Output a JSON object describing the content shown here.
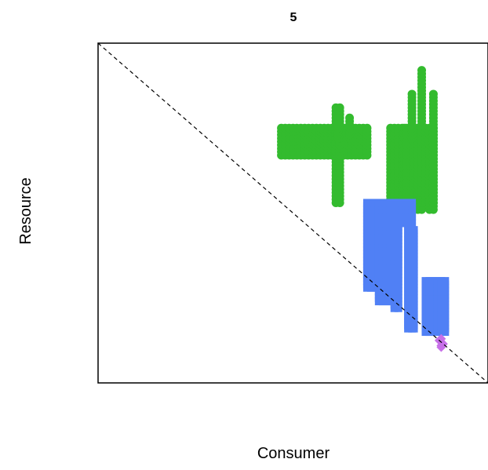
{
  "chart_data": {
    "type": "scatter",
    "title": "5",
    "xlabel": "Consumer",
    "ylabel": "Resource",
    "xlim": [
      0,
      100
    ],
    "ylim": [
      0,
      100
    ],
    "grid": false,
    "ticks": false,
    "reference_line": {
      "style": "dashed",
      "color": "#000000",
      "from": [
        0,
        100
      ],
      "to": [
        100,
        0
      ]
    },
    "series": [
      {
        "color": "#33BB2E",
        "marker": "circle",
        "groups": [
          {
            "x_range": [
              47,
              69
            ],
            "y_range": [
              67,
              75
            ]
          },
          {
            "x": 61,
            "y_range": [
              53,
              81
            ]
          },
          {
            "x": 62,
            "y_range": [
              53,
              81
            ]
          },
          {
            "x_range": [
              75,
              78
            ],
            "y_range": [
              51,
              75
            ]
          },
          {
            "x": 78,
            "y_range": [
              66,
              71
            ]
          },
          {
            "x": 78,
            "y_range": [
              59,
              62
            ]
          },
          {
            "x": 78.5,
            "y_range": [
              53,
              75
            ]
          },
          {
            "x": 79,
            "y_range": [
              53,
              75
            ]
          },
          {
            "x_range": [
              80,
              83
            ],
            "y_range": [
              51,
              75
            ]
          },
          {
            "x": 83,
            "y_range": [
              53,
              92
            ]
          },
          {
            "x": 84,
            "y_range": [
              53,
              75
            ]
          },
          {
            "x_range": [
              85,
              86
            ],
            "y_range": [
              51,
              75
            ]
          },
          {
            "x": 86,
            "y_range": [
              53,
              85
            ]
          },
          {
            "x": 80.5,
            "y_range": [
              72,
              85
            ]
          },
          {
            "x": 61.5,
            "y_range": [
              72,
              78
            ]
          },
          {
            "x": 64.5,
            "y_range": [
              72,
              78
            ]
          }
        ]
      },
      {
        "color": "#5080F5",
        "marker": "square",
        "groups": [
          {
            "x_range": [
              69,
              71
            ],
            "y_range": [
              28,
              53
            ]
          },
          {
            "x_range": [
              72,
              75
            ],
            "y_range": [
              24,
              53
            ]
          },
          {
            "x_range": [
              76,
              77
            ],
            "y_range": [
              22,
              53
            ]
          },
          {
            "x_range": [
              78,
              80
            ],
            "y_range": [
              47,
              53
            ]
          },
          {
            "x": 79.5,
            "y_range": [
              16,
              53
            ]
          },
          {
            "x": 80.5,
            "y_range": [
              16,
              53
            ]
          },
          {
            "x": 81,
            "y_range": [
              16,
              45
            ]
          },
          {
            "x_range": [
              84,
              89
            ],
            "y_range": [
              15,
              30
            ]
          }
        ]
      },
      {
        "color": "#C770E8",
        "marker": "diamond",
        "points": [
          [
            88,
            12
          ],
          [
            88,
            11
          ],
          [
            88,
            13
          ],
          [
            87.5,
            12.5
          ],
          [
            88.5,
            11.5
          ],
          [
            88,
            10.5
          ]
        ]
      }
    ]
  }
}
